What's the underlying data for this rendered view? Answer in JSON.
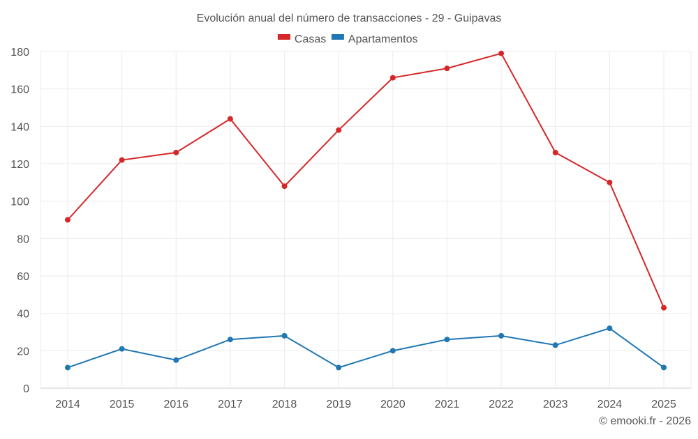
{
  "chart_data": {
    "type": "line",
    "title": "Evolución anual del número de transacciones - 29 - Guipavas",
    "categories": [
      "2014",
      "2015",
      "2016",
      "2017",
      "2018",
      "2019",
      "2020",
      "2021",
      "2022",
      "2023",
      "2024",
      "2025"
    ],
    "series": [
      {
        "name": "Casas",
        "color": "#d62728",
        "values": [
          90,
          122,
          126,
          144,
          108,
          138,
          166,
          171,
          179,
          126,
          110,
          43
        ]
      },
      {
        "name": "Apartamentos",
        "color": "#1f77b4",
        "values": [
          11,
          21,
          15,
          26,
          28,
          11,
          20,
          26,
          28,
          23,
          32,
          11
        ]
      }
    ],
    "yticks": [
      0,
      20,
      40,
      60,
      80,
      100,
      120,
      140,
      160,
      180
    ],
    "ylim": [
      0,
      180
    ],
    "grid": true,
    "legend_position": "top-center",
    "xlabel": "",
    "ylabel": ""
  },
  "footer": {
    "credit": "© emooki.fr - 2026"
  }
}
